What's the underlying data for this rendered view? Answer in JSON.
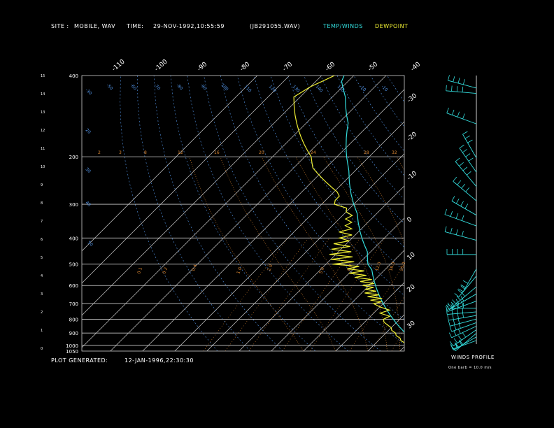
{
  "header": {
    "site_label": "SITE :",
    "site_value": "MOBILE, WAV",
    "time_label": "TIME:",
    "time_value": "29-NOV-1992,10:55:59",
    "file": "(JB291055.WAV)",
    "temp_winds_label": "TEMP/WINDS",
    "dewpoint_label": "DEWPOINT"
  },
  "footer": {
    "generated_label": "PLOT GENERATED:",
    "generated_value": "12-JAN-1996,22:30:30",
    "winds_title": "WINDS PROFILE",
    "winds_note": "One barb = 10.0 m/s"
  },
  "colors": {
    "background": "#000000",
    "temperature": "#33dddd",
    "dewpoint": "#eeee33",
    "grid": "#cccccc",
    "isotherm_label": "#ffffff",
    "mixing_ratio": "#dd8833",
    "dry_adiabat": "#5599ee",
    "moist_adiabat": "#dd8833",
    "wind_barb": "#33dddd"
  },
  "chart_data": {
    "type": "line",
    "subtype": "skew-T log-p diagram",
    "pressure_ticks": [
      {
        "label": "400",
        "p": 400
      },
      {
        "label": "200",
        "p": 200
      },
      {
        "label": "300",
        "p": 300
      },
      {
        "label": "400",
        "p": 400
      },
      {
        "label": "500",
        "p": 500
      },
      {
        "label": "600",
        "p": 600
      },
      {
        "label": "700",
        "p": 700
      },
      {
        "label": "800",
        "p": 800
      },
      {
        "label": "900",
        "p": 900
      },
      {
        "label": "1000",
        "p": 1000
      },
      {
        "label": "1050",
        "p": 1050
      }
    ],
    "height_ticks": [
      "0",
      "1",
      "2",
      "3",
      "4",
      "5",
      "6",
      "7",
      "8",
      "9",
      "10",
      "11",
      "12",
      "13",
      "14",
      "15"
    ],
    "temperature_ticks_top": [
      "-110",
      "-100",
      "-90",
      "-80",
      "-70",
      "-60",
      "-50",
      "-40"
    ],
    "temperature_ticks_right": [
      "-30",
      "-20",
      "-10",
      "0",
      "10",
      "20",
      "30"
    ],
    "isotherms": [
      -110,
      -100,
      -90,
      -80,
      -70,
      -60,
      -50,
      -40,
      -30,
      -20,
      -10,
      0,
      10,
      20,
      30
    ],
    "dry_adiabat_labels": [
      "-30",
      "-50",
      "-60",
      "-70",
      "-80",
      "-90",
      "100",
      "110",
      "120",
      "130",
      "140",
      "150",
      "-10",
      "-10",
      "20",
      "30",
      "40",
      "50"
    ],
    "mixing_ratio_labels": [
      "0.1",
      "0.2",
      "0.4",
      "1.0",
      "2.0",
      "5.0",
      "8.0",
      "12.0",
      "16.0",
      "20.0"
    ],
    "moist_labels": [
      "2",
      "3",
      "8",
      "12",
      "16",
      "20",
      "24",
      "28",
      "32"
    ],
    "series": [
      {
        "name": "TEMP/WINDS",
        "points": [
          {
            "p": 1000,
            "t": 24
          },
          {
            "p": 975,
            "t": 22
          },
          {
            "p": 950,
            "t": 19
          },
          {
            "p": 925,
            "t": 17
          },
          {
            "p": 900,
            "t": 16
          },
          {
            "p": 875,
            "t": 14
          },
          {
            "p": 850,
            "t": 12
          },
          {
            "p": 825,
            "t": 10
          },
          {
            "p": 800,
            "t": 8
          },
          {
            "p": 775,
            "t": 6
          },
          {
            "p": 750,
            "t": 4
          },
          {
            "p": 725,
            "t": 2
          },
          {
            "p": 700,
            "t": 0
          },
          {
            "p": 675,
            "t": -2
          },
          {
            "p": 650,
            "t": -4
          },
          {
            "p": 625,
            "t": -6
          },
          {
            "p": 600,
            "t": -8
          },
          {
            "p": 575,
            "t": -10
          },
          {
            "p": 550,
            "t": -12
          },
          {
            "p": 525,
            "t": -14
          },
          {
            "p": 500,
            "t": -17
          },
          {
            "p": 475,
            "t": -19
          },
          {
            "p": 450,
            "t": -21
          },
          {
            "p": 425,
            "t": -24
          },
          {
            "p": 400,
            "t": -27
          },
          {
            "p": 375,
            "t": -30
          },
          {
            "p": 350,
            "t": -33
          },
          {
            "p": 325,
            "t": -36
          },
          {
            "p": 300,
            "t": -40
          },
          {
            "p": 275,
            "t": -44
          },
          {
            "p": 250,
            "t": -48
          },
          {
            "p": 225,
            "t": -52
          },
          {
            "p": 200,
            "t": -57
          },
          {
            "p": 185,
            "t": -60
          },
          {
            "p": 170,
            "t": -63
          },
          {
            "p": 160,
            "t": -65
          },
          {
            "p": 150,
            "t": -67
          },
          {
            "p": 140,
            "t": -70
          },
          {
            "p": 130,
            "t": -73
          },
          {
            "p": 120,
            "t": -76
          },
          {
            "p": 110,
            "t": -80
          },
          {
            "p": 105,
            "t": -82
          },
          {
            "p": 100,
            "t": -83
          }
        ]
      },
      {
        "name": "DEWPOINT",
        "points": [
          {
            "p": 1000,
            "t": 20
          },
          {
            "p": 980,
            "t": 19
          },
          {
            "p": 960,
            "t": 17
          },
          {
            "p": 940,
            "t": 16
          },
          {
            "p": 920,
            "t": 14
          },
          {
            "p": 900,
            "t": 13
          },
          {
            "p": 880,
            "t": 11
          },
          {
            "p": 860,
            "t": 10
          },
          {
            "p": 840,
            "t": 8
          },
          {
            "p": 820,
            "t": 6
          },
          {
            "p": 800,
            "t": 5
          },
          {
            "p": 780,
            "t": 6
          },
          {
            "p": 760,
            "t": 2
          },
          {
            "p": 740,
            "t": 4
          },
          {
            "p": 720,
            "t": 0
          },
          {
            "p": 700,
            "t": -3
          },
          {
            "p": 690,
            "t": -1
          },
          {
            "p": 680,
            "t": -5
          },
          {
            "p": 670,
            "t": -2
          },
          {
            "p": 660,
            "t": -7
          },
          {
            "p": 650,
            "t": -4
          },
          {
            "p": 640,
            "t": -9
          },
          {
            "p": 630,
            "t": -6
          },
          {
            "p": 620,
            "t": -10
          },
          {
            "p": 610,
            "t": -8
          },
          {
            "p": 600,
            "t": -12
          },
          {
            "p": 590,
            "t": -9
          },
          {
            "p": 580,
            "t": -14
          },
          {
            "p": 570,
            "t": -11
          },
          {
            "p": 560,
            "t": -17
          },
          {
            "p": 550,
            "t": -14
          },
          {
            "p": 540,
            "t": -20
          },
          {
            "p": 530,
            "t": -16
          },
          {
            "p": 520,
            "t": -22
          },
          {
            "p": 510,
            "t": -19
          },
          {
            "p": 500,
            "t": -28
          },
          {
            "p": 490,
            "t": -22
          },
          {
            "p": 480,
            "t": -30
          },
          {
            "p": 470,
            "t": -24
          },
          {
            "p": 460,
            "t": -32
          },
          {
            "p": 450,
            "t": -26
          },
          {
            "p": 440,
            "t": -33
          },
          {
            "p": 430,
            "t": -28
          },
          {
            "p": 420,
            "t": -34
          },
          {
            "p": 410,
            "t": -30
          },
          {
            "p": 400,
            "t": -34
          },
          {
            "p": 390,
            "t": -31
          },
          {
            "p": 380,
            "t": -36
          },
          {
            "p": 370,
            "t": -33
          },
          {
            "p": 360,
            "t": -36
          },
          {
            "p": 350,
            "t": -35
          },
          {
            "p": 340,
            "t": -38
          },
          {
            "p": 330,
            "t": -37
          },
          {
            "p": 320,
            "t": -40
          },
          {
            "p": 310,
            "t": -41
          },
          {
            "p": 300,
            "t": -46
          },
          {
            "p": 290,
            "t": -47
          },
          {
            "p": 280,
            "t": -47
          },
          {
            "p": 270,
            "t": -49
          },
          {
            "p": 260,
            "t": -52
          },
          {
            "p": 250,
            "t": -55
          },
          {
            "p": 240,
            "t": -58
          },
          {
            "p": 230,
            "t": -61
          },
          {
            "p": 220,
            "t": -64
          },
          {
            "p": 210,
            "t": -66
          },
          {
            "p": 200,
            "t": -68
          },
          {
            "p": 190,
            "t": -71
          },
          {
            "p": 180,
            "t": -74
          },
          {
            "p": 170,
            "t": -77
          },
          {
            "p": 160,
            "t": -80
          },
          {
            "p": 150,
            "t": -83
          },
          {
            "p": 140,
            "t": -86
          },
          {
            "p": 130,
            "t": -89
          },
          {
            "p": 120,
            "t": -92
          },
          {
            "p": 110,
            "t": -90
          },
          {
            "p": 105,
            "t": -88
          },
          {
            "p": 100,
            "t": -86
          }
        ]
      }
    ],
    "winds_profile": {
      "title": "WINDS PROFILE",
      "note": "One barb = 10.0 m/s",
      "barbs": [
        {
          "h": 0.2,
          "dir": 250,
          "spd": 20
        },
        {
          "h": 0.4,
          "dir": 240,
          "spd": 25
        },
        {
          "h": 0.6,
          "dir": 230,
          "spd": 30
        },
        {
          "h": 0.8,
          "dir": 235,
          "spd": 35
        },
        {
          "h": 1.0,
          "dir": 245,
          "spd": 30
        },
        {
          "h": 1.2,
          "dir": 250,
          "spd": 25
        },
        {
          "h": 1.4,
          "dir": 255,
          "spd": 30
        },
        {
          "h": 1.6,
          "dir": 260,
          "spd": 35
        },
        {
          "h": 1.8,
          "dir": 265,
          "spd": 40
        },
        {
          "h": 2.0,
          "dir": 270,
          "spd": 35
        },
        {
          "h": 2.4,
          "dir": 250,
          "spd": 45
        },
        {
          "h": 2.8,
          "dir": 240,
          "spd": 50
        },
        {
          "h": 3.2,
          "dir": 230,
          "spd": 55
        },
        {
          "h": 3.8,
          "dir": 220,
          "spd": 30
        },
        {
          "h": 4.2,
          "dir": 210,
          "spd": 25
        },
        {
          "h": 5.0,
          "dir": 270,
          "spd": 40
        },
        {
          "h": 5.8,
          "dir": 285,
          "spd": 55
        },
        {
          "h": 6.6,
          "dir": 290,
          "spd": 60
        },
        {
          "h": 7.2,
          "dir": 300,
          "spd": 35
        },
        {
          "h": 8.0,
          "dir": 310,
          "spd": 45
        },
        {
          "h": 8.8,
          "dir": 320,
          "spd": 55
        },
        {
          "h": 9.6,
          "dir": 325,
          "spd": 40
        },
        {
          "h": 10.4,
          "dir": 330,
          "spd": 30
        },
        {
          "h": 12.3,
          "dir": 290,
          "spd": 50
        },
        {
          "h": 14.0,
          "dir": 275,
          "spd": 45
        },
        {
          "h": 14.3,
          "dir": 285,
          "spd": 40
        }
      ]
    }
  }
}
